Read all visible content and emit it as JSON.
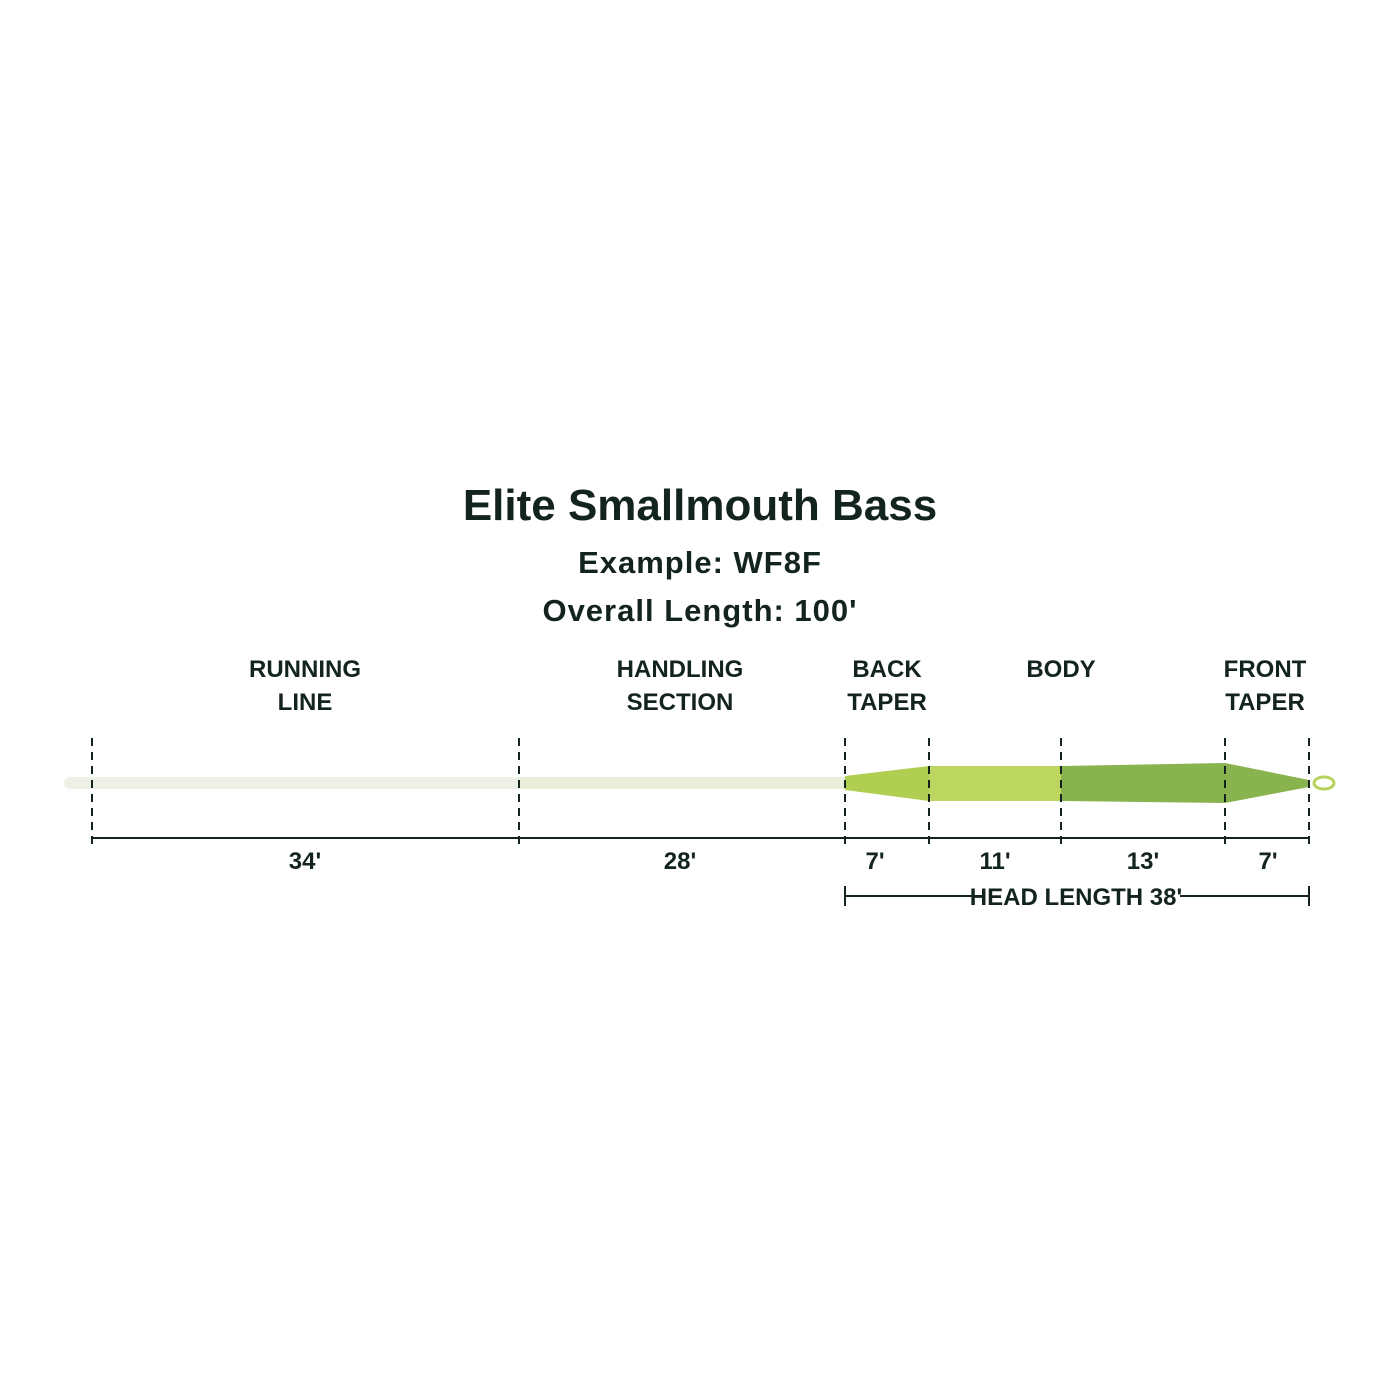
{
  "header": {
    "title": "Elite Smallmouth Bass",
    "example": "Example: WF8F",
    "overall_length": "Overall Length: 100'"
  },
  "sections": [
    {
      "lines": [
        "RUNNING",
        "LINE"
      ]
    },
    {
      "lines": [
        "HANDLING",
        "SECTION"
      ]
    },
    {
      "lines": [
        "BACK",
        "TAPER"
      ]
    },
    {
      "lines": [
        "BODY"
      ]
    },
    {
      "lines": [
        "FRONT",
        "TAPER"
      ]
    }
  ],
  "dimensions": [
    "34'",
    "28'",
    "7'",
    "11'",
    "13'",
    "7'"
  ],
  "head_length": "HEAD LENGTH 38'"
}
